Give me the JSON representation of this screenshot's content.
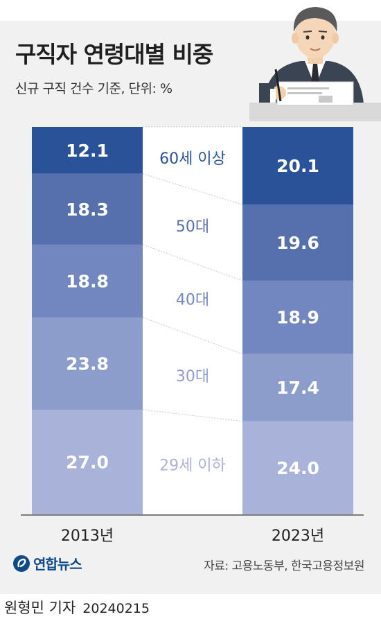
{
  "title": "구직자 연령대별 비중",
  "subtitle": "신규 구직 건수 기준, 단위: %",
  "source": "자료: 고용노동부, 한국고용정보원",
  "logo_text": "연합뉴스",
  "byline": {
    "author": "원형민 기자",
    "date": "20240215"
  },
  "colors": {
    "background": "#f1f1f1",
    "band": "#ffffff",
    "segments": [
      "#2a5298",
      "#5570ad",
      "#7287c0",
      "#8d9dcb",
      "#a9b3da"
    ],
    "segment_labels": [
      "#2a5298",
      "#5570ad",
      "#7287c0",
      "#8d9dcb",
      "#a9b3da"
    ]
  },
  "chart_data": {
    "type": "bar",
    "stacked": true,
    "normalized": true,
    "categories": [
      "2013년",
      "2023년"
    ],
    "series": [
      {
        "name": "60세 이상",
        "values": [
          12.1,
          20.1
        ]
      },
      {
        "name": "50대",
        "values": [
          18.3,
          19.6
        ]
      },
      {
        "name": "40대",
        "values": [
          18.8,
          18.9
        ]
      },
      {
        "name": "30대",
        "values": [
          23.8,
          17.4
        ]
      },
      {
        "name": "29세 이하",
        "values": [
          27.0,
          24.0
        ]
      }
    ],
    "value_labels": [
      [
        "12.1",
        "18.3",
        "18.8",
        "23.8",
        "27.0"
      ],
      [
        "20.1",
        "19.6",
        "18.9",
        "17.4",
        "24.0"
      ]
    ],
    "ylim": [
      0,
      100
    ]
  }
}
